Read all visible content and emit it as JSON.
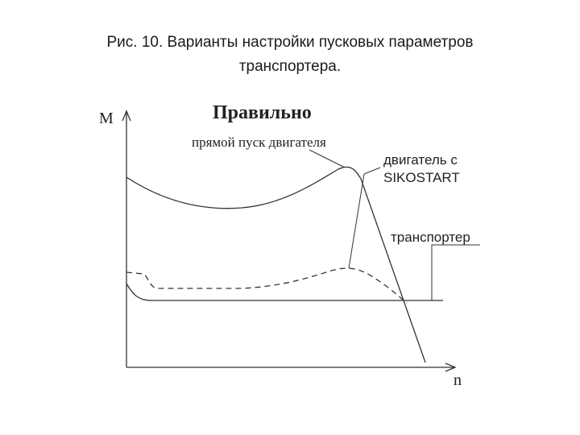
{
  "title": {
    "line1": "Рис. 10. Варианты настройки пусковых параметров",
    "line2": "транспортера."
  },
  "diagram": {
    "heading": "Правильно",
    "axis_y": "M",
    "axis_x": "n",
    "label_direct_start": "прямой пуск двигателя",
    "label_sikostart_1": "двигатель с",
    "label_sikostart_2": "SIKOSTART",
    "label_conveyor": "транспортер"
  }
}
